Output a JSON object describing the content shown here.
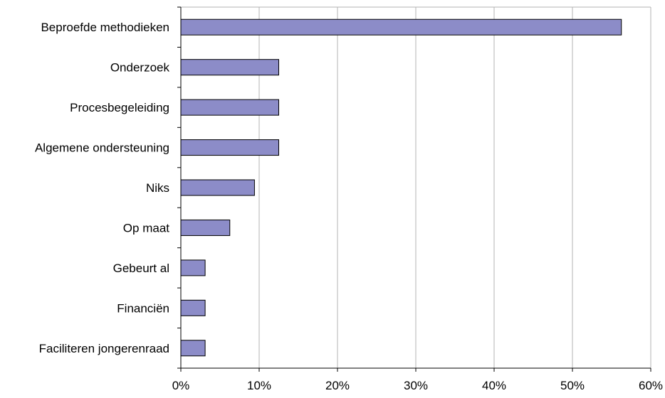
{
  "chart_data": {
    "type": "bar",
    "orientation": "horizontal",
    "categories": [
      "Beproefde methodieken",
      "Onderzoek",
      "Procesbegeleiding",
      "Algemene ondersteuning",
      "Niks",
      "Op maat",
      "Gebeurt al",
      "Financiën",
      "Faciliteren jongerenraad"
    ],
    "values": [
      56.25,
      12.5,
      12.5,
      12.5,
      9.4,
      6.25,
      3.1,
      3.1,
      3.1
    ],
    "xlim": [
      0,
      60
    ],
    "x_ticks": [
      "0%",
      "10%",
      "20%",
      "30%",
      "40%",
      "50%",
      "60%"
    ],
    "grid": true,
    "colors": {
      "bar": "#8c8cc8",
      "grid": "#b3b3b3"
    }
  }
}
